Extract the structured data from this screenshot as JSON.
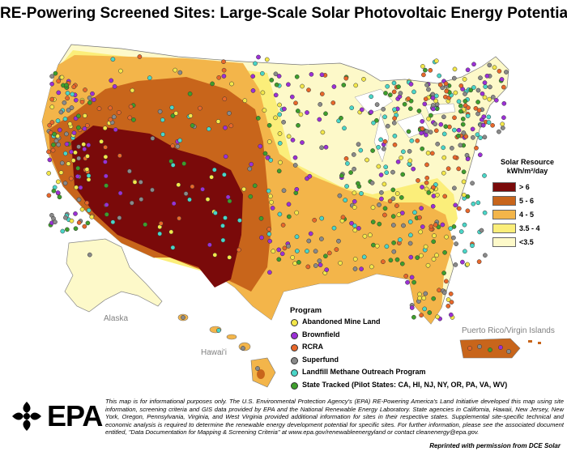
{
  "title": "RE-Powering Screened Sites: Large-Scale Solar Photovoltaic Energy Potential",
  "region_labels": {
    "alaska": "Alaska",
    "hawaii": "Hawai'i",
    "puerto_rico": "Puerto Rico/Virgin Islands"
  },
  "solar_legend": {
    "title_line1": "Solar Resource",
    "unit": "kWh/m²/day",
    "classes": [
      {
        "label": "> 6",
        "color": "#7a0a0a"
      },
      {
        "label": "5 - 6",
        "color": "#c8651b"
      },
      {
        "label": "4 - 5",
        "color": "#f3b54a"
      },
      {
        "label": "3.5 - 4",
        "color": "#fbee7a"
      },
      {
        "label": "<3.5",
        "color": "#fdf9c9"
      }
    ]
  },
  "program_legend": {
    "title": "Program",
    "items": [
      {
        "label": "Abandoned Mine Land",
        "color": "#f3e74a"
      },
      {
        "label": "Brownfield",
        "color": "#9b30d6"
      },
      {
        "label": "RCRA",
        "color": "#e8672a"
      },
      {
        "label": "Superfund",
        "color": "#8a8a8a"
      },
      {
        "label": "Landfill Methane Outreach Program",
        "color": "#4ad6c8"
      },
      {
        "label": "State Tracked (Pilot States: CA, HI, NJ, NY, OR, PA, VA, WV)",
        "color": "#3e9e2c"
      }
    ]
  },
  "logo": {
    "text": "EPA"
  },
  "disclaimer": "This map is for informational purposes only. The U.S. Environmental Protection Agency's (EPA) RE-Powering America's Land Initiative developed this map using site information, screening criteria and GIS data provided by EPA and the National Renewable Energy Laboratory. State agencies in California, Hawaii, New Jersey, New York, Oregon, Pennsylvania, Virginia, and West Virginia provided additional information for sites in their respective states. Supplemental site-specific technical and economic analysis is required to determine the renewable energy development potential for specific sites. For further information, please see the associated document entitled, \"Data Documentation for Mapping & Screening Criteria\" at www.epa.gov/renewableenergyland or contact cleanenergy@epa.gov.",
  "reprint": "Reprinted with permission from DCE Solar"
}
